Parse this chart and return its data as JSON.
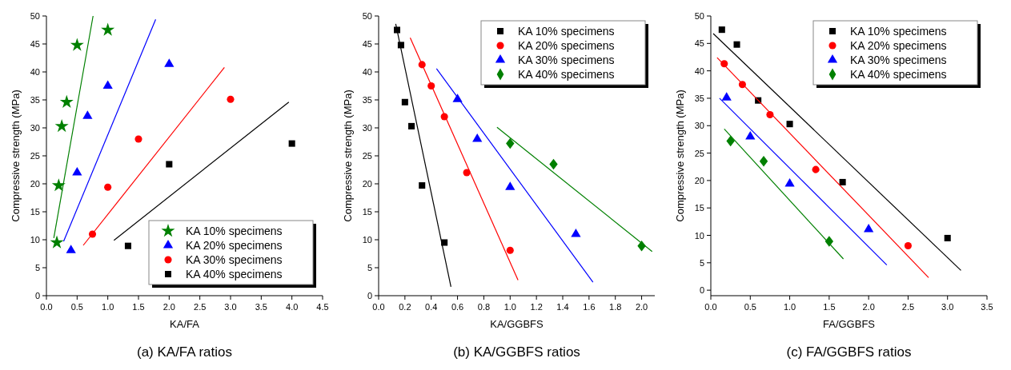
{
  "chart_data": [
    {
      "type": "scatter",
      "title": "(a) KA/FA ratios",
      "xlabel": "KA/FA",
      "ylabel": "Compressive strength (MPa)",
      "xlim": [
        0,
        4.5
      ],
      "ylim": [
        0,
        50
      ],
      "xticks": [
        {
          "value": 0,
          "label": "0.0"
        },
        0.5,
        {
          "value": 1,
          "label": "1.0"
        },
        1.5,
        {
          "value": 2,
          "label": "2.0"
        },
        2.5,
        {
          "value": 3,
          "label": "3.0"
        },
        3.5,
        {
          "value": 4,
          "label": "4.0"
        },
        4.5
      ],
      "yticks": [
        0,
        5,
        10,
        15,
        20,
        25,
        30,
        35,
        40,
        45,
        50
      ],
      "grid": false,
      "legend": "bottom right",
      "series": [
        {
          "name": "KA 10% specimens",
          "color": "#008000",
          "marker": "star",
          "x": [
            0.17,
            0.2,
            0.25,
            0.33,
            0.5,
            1.0
          ],
          "values": [
            9.5,
            19.7,
            30.3,
            34.6,
            44.8,
            47.5
          ]
        },
        {
          "name": "KA 20% specimens",
          "color": "#0000ff",
          "marker": "triangle",
          "x": [
            0.4,
            0.5,
            0.67,
            1.0,
            2.0
          ],
          "values": [
            8.1,
            22,
            32.1,
            37.5,
            41.4
          ]
        },
        {
          "name": "KA 30% specimens",
          "color": "#ff0000",
          "marker": "circle",
          "x": [
            0.75,
            1.0,
            1.5,
            3.0
          ],
          "values": [
            11,
            19.4,
            28,
            35.1
          ]
        },
        {
          "name": "KA 40% specimens",
          "color": "#000000",
          "marker": "square",
          "x": [
            1.33,
            2.0,
            4.0
          ],
          "values": [
            8.9,
            23.5,
            27.2
          ]
        },
        {
          "type": "line",
          "color": "#008000",
          "x": [
            0.12,
            0.76
          ],
          "values": [
            10.3,
            50
          ]
        },
        {
          "type": "line",
          "color": "#0000ff",
          "x": [
            0.28,
            1.78
          ],
          "values": [
            9.7,
            49.4
          ]
        },
        {
          "type": "line",
          "color": "#ff0000",
          "x": [
            0.6,
            2.9
          ],
          "values": [
            9,
            40.8
          ]
        },
        {
          "type": "line",
          "color": "#000000",
          "x": [
            1.1,
            3.95
          ],
          "values": [
            9.9,
            34.6
          ]
        }
      ]
    },
    {
      "type": "scatter",
      "title": "(b) KA/GGBFS ratios",
      "xlabel": "KA/GGBFS",
      "ylabel": "Compressive strength (MPa)",
      "xlim": [
        0,
        2.1
      ],
      "ylim": [
        0,
        50
      ],
      "xticks": [
        {
          "value": 0,
          "label": "0.0"
        },
        0.2,
        0.4,
        0.6,
        0.8,
        {
          "value": 1,
          "label": "1.0"
        },
        1.2,
        1.4,
        1.6,
        1.8,
        {
          "value": 2,
          "label": "2.0"
        }
      ],
      "yticks": [
        0,
        5,
        10,
        15,
        20,
        25,
        30,
        35,
        40,
        45,
        50
      ],
      "grid": false,
      "legend": "top right",
      "series": [
        {
          "name": "KA 10% specimens",
          "color": "#000000",
          "marker": "square",
          "x": [
            0.14,
            0.17,
            0.2,
            0.25,
            0.33,
            0.5
          ],
          "values": [
            47.5,
            44.8,
            34.6,
            30.3,
            19.7,
            9.5
          ]
        },
        {
          "name": "KA 20% specimens",
          "color": "#ff0000",
          "marker": "circle",
          "x": [
            0.33,
            0.4,
            0.5,
            0.67,
            1.0
          ],
          "values": [
            41.3,
            37.5,
            32,
            22,
            8.1
          ]
        },
        {
          "name": "KA 30% specimens",
          "color": "#0000ff",
          "marker": "triangle",
          "x": [
            0.6,
            0.75,
            1.0,
            1.5
          ],
          "values": [
            35.1,
            28,
            19.4,
            11
          ]
        },
        {
          "name": "KA 40% specimens",
          "color": "#008000",
          "marker": "diamond",
          "x": [
            1.0,
            1.33,
            2.0
          ],
          "values": [
            27.2,
            23.5,
            8.9
          ]
        },
        {
          "type": "line",
          "color": "#000000",
          "x": [
            0.13,
            0.55
          ],
          "values": [
            48.6,
            1.6
          ]
        },
        {
          "type": "line",
          "color": "#ff0000",
          "x": [
            0.24,
            1.06
          ],
          "values": [
            46.1,
            2.8
          ]
        },
        {
          "type": "line",
          "color": "#0000ff",
          "x": [
            0.44,
            1.63
          ],
          "values": [
            40.6,
            2.4
          ]
        },
        {
          "type": "line",
          "color": "#008000",
          "x": [
            0.9,
            2.08
          ],
          "values": [
            30.1,
            7.9
          ]
        }
      ]
    },
    {
      "type": "scatter",
      "title": "(c) FA/GGBFS ratios",
      "xlabel": "FA/GGBFS",
      "ylabel": "Compressive strength (MPa)",
      "xlim": [
        0,
        3.5
      ],
      "ylim": [
        -1,
        50
      ],
      "xticks": [
        {
          "value": 0,
          "label": "0.0"
        },
        0.5,
        {
          "value": 1,
          "label": "1.0"
        },
        1.5,
        {
          "value": 2,
          "label": "2.0"
        },
        2.5,
        {
          "value": 3,
          "label": "3.0"
        },
        3.5
      ],
      "yticks": [
        0,
        5,
        10,
        15,
        20,
        25,
        30,
        35,
        40,
        45,
        50
      ],
      "grid": false,
      "legend": "top right",
      "series": [
        {
          "name": "KA 10% specimens",
          "color": "#000000",
          "marker": "square",
          "x": [
            0.14,
            0.33,
            0.6,
            1.0,
            1.67,
            3.0
          ],
          "values": [
            47.5,
            44.8,
            34.6,
            30.3,
            19.7,
            9.5
          ]
        },
        {
          "name": "KA 20% specimens",
          "color": "#ff0000",
          "marker": "circle",
          "x": [
            0.17,
            0.4,
            0.75,
            1.33,
            2.5
          ],
          "values": [
            41.3,
            37.5,
            32,
            22,
            8.1
          ]
        },
        {
          "name": "KA 30% specimens",
          "color": "#0000ff",
          "marker": "triangle",
          "x": [
            0.2,
            0.5,
            1.0,
            2.0
          ],
          "values": [
            35.1,
            28,
            19.4,
            11.1
          ]
        },
        {
          "name": "KA 40% specimens",
          "color": "#008000",
          "marker": "diamond",
          "x": [
            0.25,
            0.67,
            1.5
          ],
          "values": [
            27.2,
            23.5,
            8.9
          ]
        },
        {
          "type": "line",
          "color": "#000000",
          "x": [
            0.03,
            3.17
          ],
          "values": [
            46.8,
            3.6
          ]
        },
        {
          "type": "line",
          "color": "#ff0000",
          "x": [
            0.08,
            2.76
          ],
          "values": [
            42.4,
            2.3
          ]
        },
        {
          "type": "line",
          "color": "#0000ff",
          "x": [
            0.11,
            2.23
          ],
          "values": [
            35,
            4.6
          ]
        },
        {
          "type": "line",
          "color": "#008000",
          "x": [
            0.17,
            1.68
          ],
          "values": [
            29.4,
            5.7
          ]
        }
      ]
    }
  ]
}
